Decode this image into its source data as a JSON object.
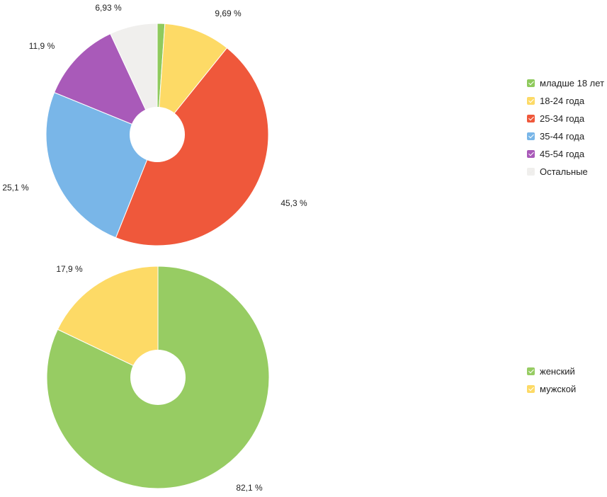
{
  "chart_data": [
    {
      "type": "pie",
      "categories": [
        "младше 18 лет",
        "18-24 года",
        "25-34 года",
        "35-44 года",
        "45-54 года",
        "Остальные"
      ],
      "values": [
        1.1,
        9.69,
        45.3,
        25.1,
        11.9,
        6.93
      ],
      "labels": [
        "",
        "9,69 %",
        "45,3 %",
        "25,1 %",
        "11,9 %",
        "6,93 %"
      ],
      "colors": [
        "#8fca5d",
        "#fdda66",
        "#ef583b",
        "#79b6e8",
        "#a95ab9",
        "#f0efed"
      ],
      "legend_position": "right",
      "donut": true
    },
    {
      "type": "pie",
      "categories": [
        "женский",
        "мужской"
      ],
      "values": [
        82.1,
        17.9
      ],
      "labels": [
        "82,1 %",
        "17,9 %"
      ],
      "colors": [
        "#97cc63",
        "#fdda66"
      ],
      "legend_position": "right",
      "donut": true
    }
  ]
}
